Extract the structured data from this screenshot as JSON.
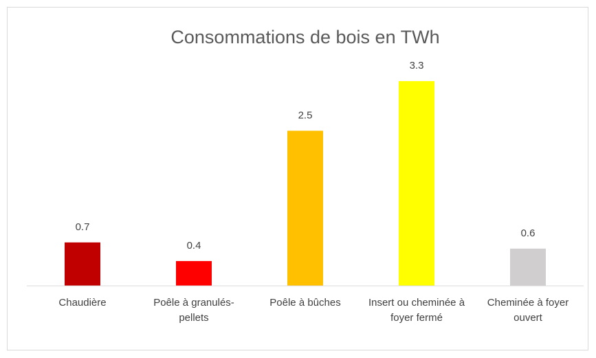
{
  "chart_data": {
    "type": "bar",
    "title": "Consommations de bois en TWh",
    "categories": [
      "Chaudière",
      "Poêle à granulés-pellets",
      "Poêle à bûches",
      "Insert ou cheminée à foyer fermé",
      "Cheminée à foyer ouvert"
    ],
    "values": [
      0.7,
      0.4,
      2.5,
      3.3,
      0.6
    ],
    "colors": [
      "#c00000",
      "#ff0000",
      "#ffc000",
      "#ffff00",
      "#d0cece"
    ],
    "ylim": [
      0,
      3.5
    ]
  }
}
